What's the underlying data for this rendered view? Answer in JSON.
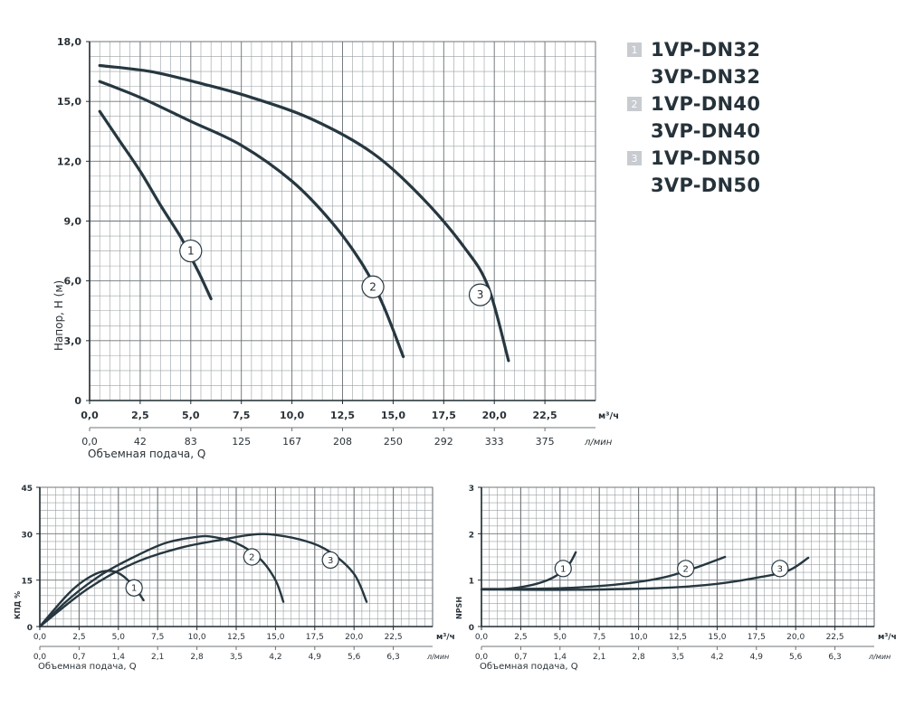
{
  "legend": [
    {
      "num": "1",
      "lines": [
        "1VP-DN32",
        "3VP-DN32"
      ]
    },
    {
      "num": "2",
      "lines": [
        "1VP-DN40",
        "3VP-DN40"
      ]
    },
    {
      "num": "3",
      "lines": [
        "1VP-DN50",
        "3VP-DN50"
      ]
    }
  ],
  "colors": {
    "curve": "#263740",
    "grid_minor": "#9aa0a4",
    "grid_major": "#6d7478",
    "axis": "#1f2a30"
  },
  "chart_data": [
    {
      "id": "head",
      "type": "line",
      "xlabel_unit": "м³/ч",
      "ylabel": "Напор, Н (м)",
      "xlim": [
        0,
        25
      ],
      "ylim": [
        0,
        18
      ],
      "x_ticks": [
        "0,0",
        "2,5",
        "5,0",
        "7,5",
        "10,0",
        "12,5",
        "15,0",
        "17,5",
        "20,0",
        "22,5"
      ],
      "y_ticks": [
        "0",
        "3,0",
        "6,0",
        "9,0",
        "12,0",
        "15,0",
        "18,0"
      ],
      "secondary_x_ticks": [
        "0,0",
        "42",
        "83",
        "125",
        "167",
        "208",
        "250",
        "292",
        "333",
        "375"
      ],
      "secondary_unit": "л/мин",
      "secondary_label": "Объемная подача, Q",
      "grid": true,
      "series": [
        {
          "name": "1",
          "label_at": [
            5.0,
            7.5
          ],
          "points": [
            [
              0.5,
              14.5
            ],
            [
              1.5,
              13.0
            ],
            [
              2.5,
              11.5
            ],
            [
              3.5,
              9.8
            ],
            [
              4.5,
              8.2
            ],
            [
              5.0,
              7.2
            ],
            [
              5.5,
              6.2
            ],
            [
              6.0,
              5.1
            ]
          ]
        },
        {
          "name": "2",
          "label_at": [
            14.0,
            5.7
          ],
          "points": [
            [
              0.5,
              16.0
            ],
            [
              2.5,
              15.2
            ],
            [
              5.0,
              14.0
            ],
            [
              7.5,
              12.8
            ],
            [
              10.0,
              11.0
            ],
            [
              12.0,
              8.9
            ],
            [
              13.5,
              6.8
            ],
            [
              14.5,
              4.8
            ],
            [
              15.5,
              2.2
            ]
          ]
        },
        {
          "name": "3",
          "label_at": [
            19.3,
            5.3
          ],
          "points": [
            [
              0.5,
              16.8
            ],
            [
              3.0,
              16.5
            ],
            [
              5.5,
              15.9
            ],
            [
              8.0,
              15.2
            ],
            [
              11.0,
              14.1
            ],
            [
              14.0,
              12.4
            ],
            [
              16.5,
              10.1
            ],
            [
              18.5,
              7.7
            ],
            [
              19.7,
              5.7
            ],
            [
              20.7,
              2.0
            ]
          ]
        }
      ]
    },
    {
      "id": "efficiency",
      "type": "line",
      "ylabel": "КПД %",
      "xlabel_unit": "м³/ч",
      "xlim": [
        0,
        25
      ],
      "ylim": [
        0,
        45
      ],
      "x_ticks": [
        "0,0",
        "2,5",
        "5,0",
        "7,5",
        "10,0",
        "12,5",
        "15,0",
        "17,5",
        "20,0",
        "22,5"
      ],
      "y_ticks": [
        "0",
        "15",
        "30",
        "45"
      ],
      "secondary_x_ticks": [
        "0,0",
        "0,7",
        "1,4",
        "2,1",
        "2,8",
        "3,5",
        "4,2",
        "4,9",
        "5,6",
        "6,3"
      ],
      "secondary_unit": "л/мин",
      "secondary_label": "Объемная подача, Q",
      "grid": true,
      "series": [
        {
          "name": "1",
          "label_at": [
            6.0,
            12.5
          ],
          "points": [
            [
              0,
              0
            ],
            [
              1.0,
              6.0
            ],
            [
              2.0,
              11.5
            ],
            [
              3.0,
              15.5
            ],
            [
              4.0,
              17.8
            ],
            [
              4.8,
              17.7
            ],
            [
              5.5,
              15.5
            ],
            [
              6.2,
              11.5
            ],
            [
              6.6,
              8.5
            ]
          ]
        },
        {
          "name": "2",
          "label_at": [
            13.5,
            22.5
          ],
          "points": [
            [
              0,
              0
            ],
            [
              2.0,
              9.5
            ],
            [
              4.0,
              17.0
            ],
            [
              6.0,
              22.5
            ],
            [
              8.0,
              27.0
            ],
            [
              10.0,
              29.0
            ],
            [
              11.0,
              29.0
            ],
            [
              12.5,
              27.0
            ],
            [
              14.0,
              22.0
            ],
            [
              15.0,
              15.0
            ],
            [
              15.5,
              8.0
            ]
          ]
        },
        {
          "name": "3",
          "label_at": [
            18.5,
            21.5
          ],
          "points": [
            [
              0,
              0
            ],
            [
              3.0,
              12.0
            ],
            [
              6.0,
              20.5
            ],
            [
              9.0,
              25.5
            ],
            [
              11.5,
              28.0
            ],
            [
              13.5,
              29.7
            ],
            [
              15.0,
              29.6
            ],
            [
              17.0,
              27.5
            ],
            [
              18.5,
              24.0
            ],
            [
              20.0,
              17.0
            ],
            [
              20.8,
              8.0
            ]
          ]
        }
      ]
    },
    {
      "id": "npsh",
      "type": "line",
      "ylabel": "NPSH",
      "xlabel_unit": "м³/ч",
      "xlim": [
        0,
        25
      ],
      "ylim": [
        0,
        3
      ],
      "x_ticks": [
        "0,0",
        "2,5",
        "5,0",
        "7,5",
        "10,0",
        "12,5",
        "15,0",
        "17,5",
        "20,0",
        "22,5"
      ],
      "y_ticks": [
        "0",
        "1",
        "2",
        "3"
      ],
      "secondary_x_ticks": [
        "0,0",
        "0,7",
        "1,4",
        "2,1",
        "2,8",
        "3,5",
        "4,2",
        "4,9",
        "5,6",
        "6,3"
      ],
      "secondary_unit": "л/мин",
      "secondary_label": "Объемная подача, Q",
      "grid": true,
      "series": [
        {
          "name": "1",
          "label_at": [
            5.2,
            1.25
          ],
          "points": [
            [
              0,
              0.8
            ],
            [
              1.5,
              0.81
            ],
            [
              3.0,
              0.88
            ],
            [
              4.2,
              1.0
            ],
            [
              5.0,
              1.15
            ],
            [
              5.6,
              1.35
            ],
            [
              6.0,
              1.6
            ]
          ]
        },
        {
          "name": "2",
          "label_at": [
            13.0,
            1.25
          ],
          "points": [
            [
              0,
              0.8
            ],
            [
              3.0,
              0.81
            ],
            [
              6.0,
              0.84
            ],
            [
              9.0,
              0.92
            ],
            [
              11.5,
              1.05
            ],
            [
              13.5,
              1.25
            ],
            [
              15.5,
              1.5
            ]
          ]
        },
        {
          "name": "3",
          "label_at": [
            19.0,
            1.25
          ],
          "points": [
            [
              0,
              0.8
            ],
            [
              4.0,
              0.79
            ],
            [
              8.0,
              0.8
            ],
            [
              12.0,
              0.84
            ],
            [
              15.0,
              0.92
            ],
            [
              17.5,
              1.05
            ],
            [
              19.5,
              1.2
            ],
            [
              20.8,
              1.48
            ]
          ]
        }
      ]
    }
  ]
}
